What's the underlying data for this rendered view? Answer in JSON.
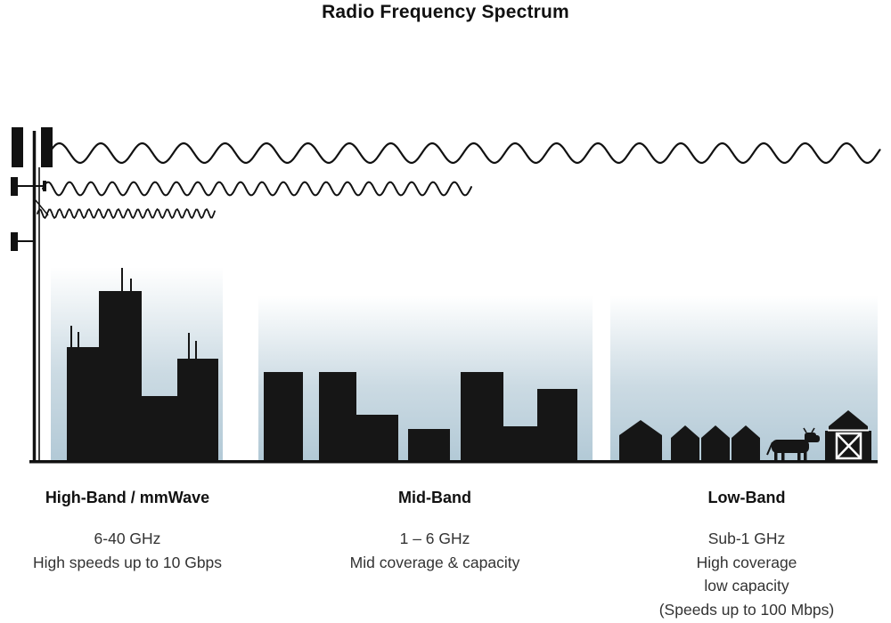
{
  "title": "Radio Frequency Spectrum",
  "colors": {
    "ink": "#111111",
    "building": "#161616",
    "sky_gradient_bottom": "#b7ccd8",
    "background": "#ffffff"
  },
  "bands": [
    {
      "id": "high-band",
      "label": "High-Band / mmWave",
      "lines": [
        "6-40 GHz",
        "High speeds up to 10 Gbps"
      ]
    },
    {
      "id": "mid-band",
      "label": "Mid-Band",
      "lines": [
        "1 – 6 GHz",
        "Mid coverage & capacity"
      ]
    },
    {
      "id": "low-band",
      "label": "Low-Band",
      "lines": [
        "Sub-1 GHz",
        "High coverage",
        "low capacity",
        "(Speeds up to 100 Mbps)"
      ]
    }
  ],
  "icons": {
    "tower": "cell-tower-icon",
    "waves": [
      "low-frequency-wave",
      "mid-frequency-wave",
      "high-frequency-wave"
    ],
    "scenes": [
      "city-skyline",
      "town-skyline",
      "rural-scene"
    ]
  }
}
